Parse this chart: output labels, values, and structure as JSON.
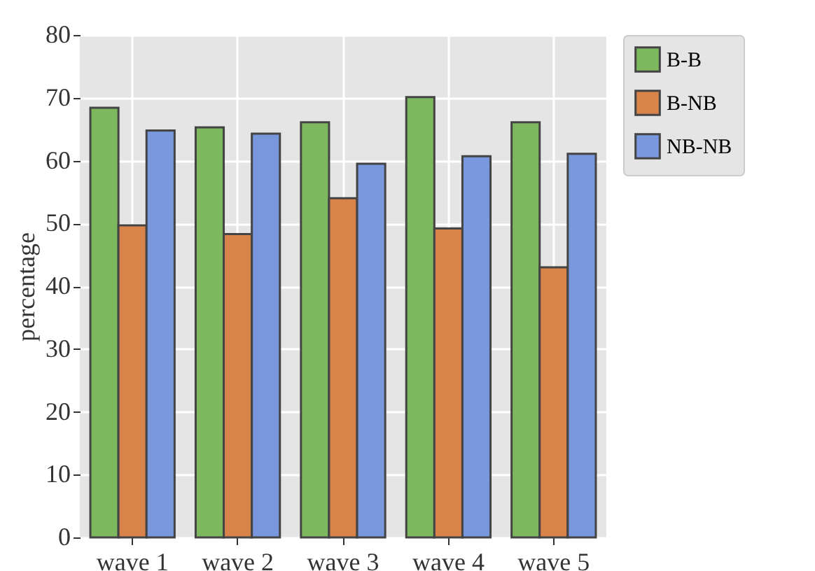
{
  "chart_data": {
    "type": "bar",
    "ylabel": "percentage",
    "categories": [
      "wave 1",
      "wave 2",
      "wave 3",
      "wave 4",
      "wave 5"
    ],
    "series": [
      {
        "name": "B-B",
        "color": "#7eb85e",
        "values": [
          68.4,
          65.3,
          66.1,
          70.1,
          66.1
        ]
      },
      {
        "name": "B-NB",
        "color": "#d7834a",
        "values": [
          49.7,
          48.3,
          54.0,
          49.2,
          43.0
        ]
      },
      {
        "name": "NB-NB",
        "color": "#7897dd",
        "values": [
          64.8,
          64.3,
          59.5,
          60.7,
          61.1
        ]
      }
    ],
    "ylim": [
      0,
      80
    ],
    "yticks": [
      0,
      10,
      20,
      30,
      40,
      50,
      60,
      70,
      80
    ],
    "grid": true,
    "legend": "top right"
  }
}
